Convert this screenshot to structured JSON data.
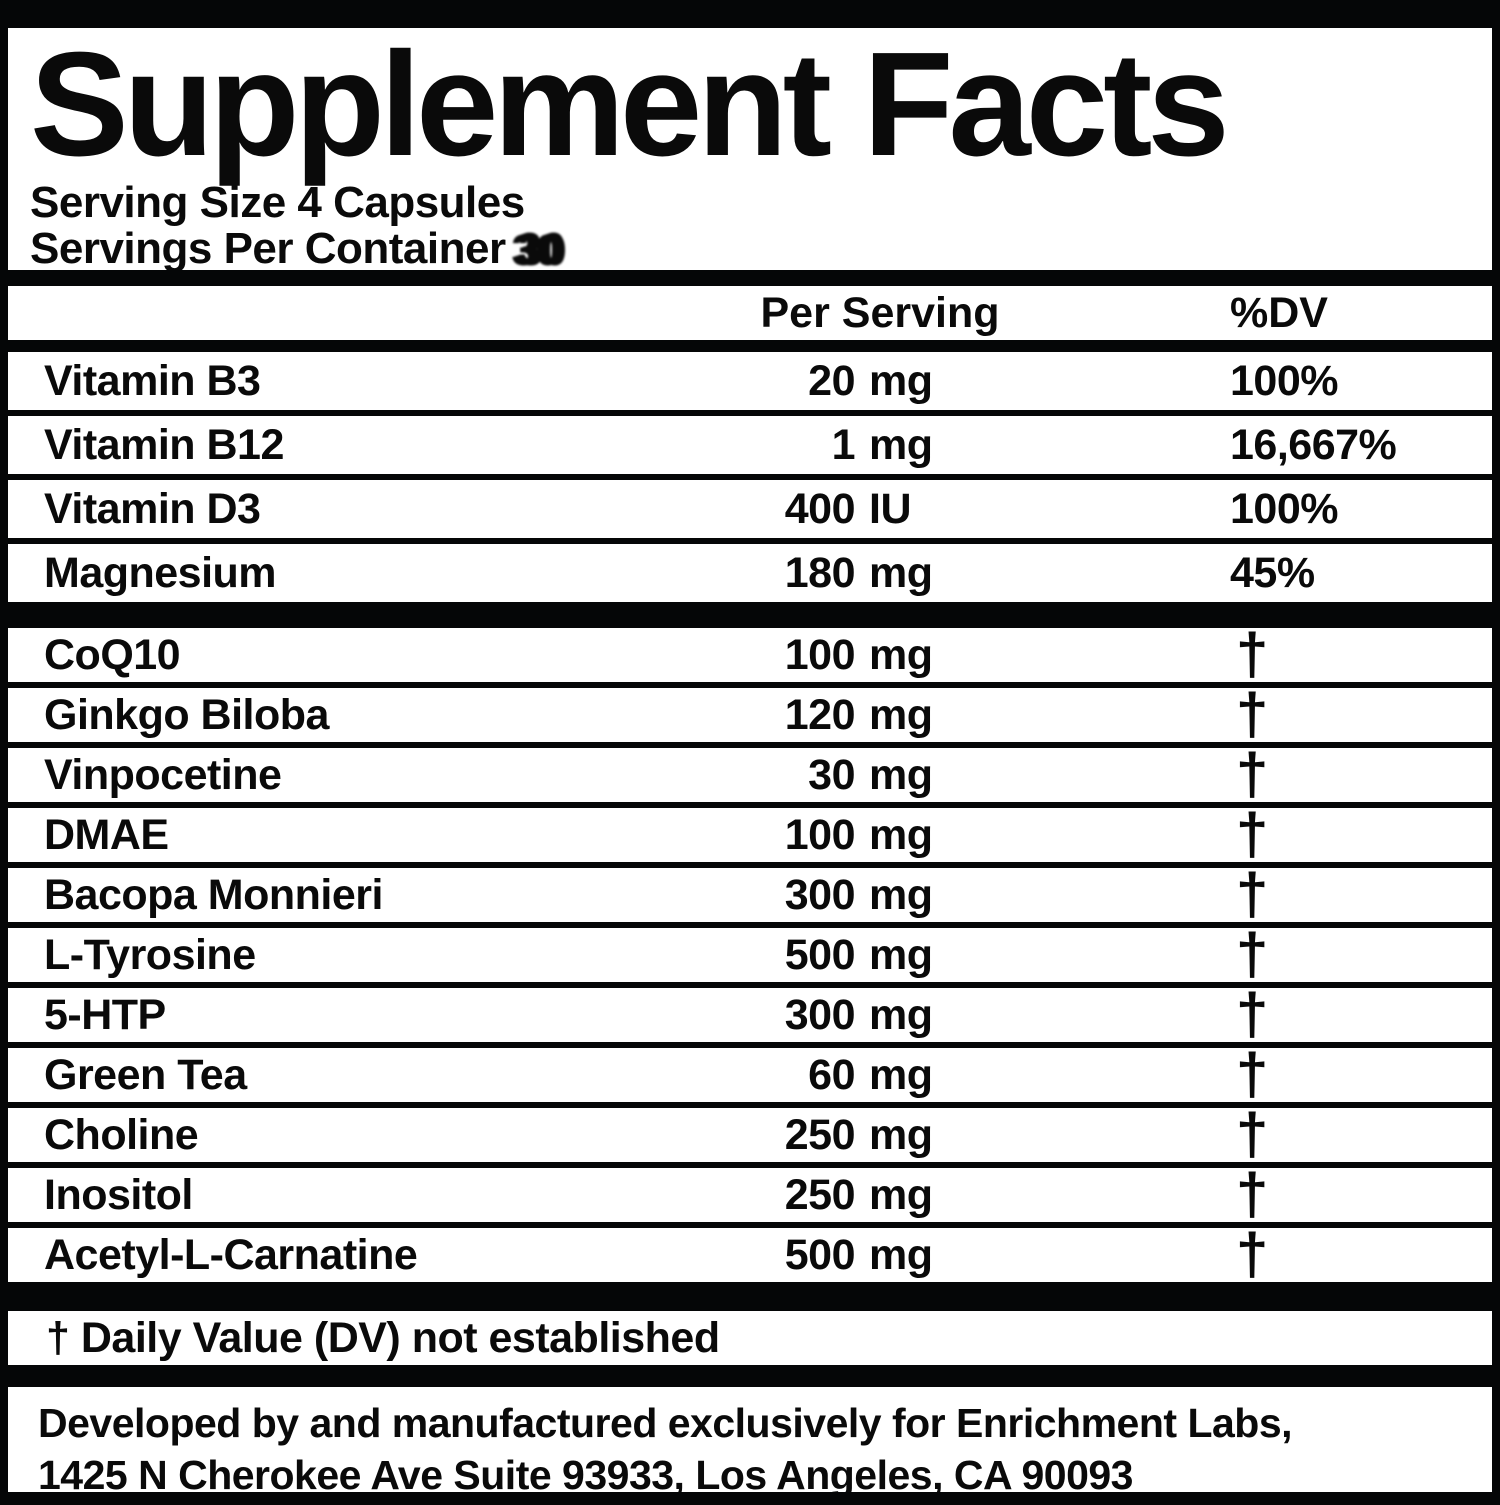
{
  "header": {
    "title": "Supplement Facts",
    "serving_size": "Serving Size 4 Capsules",
    "servings_per_container_label": "Servings Per Container",
    "servings_per_container_value": "30"
  },
  "table": {
    "columns": {
      "per_serving": "Per Serving",
      "dv": "%DV"
    },
    "sections": [
      {
        "rows": [
          {
            "name": "Vitamin B3",
            "amount": "20",
            "unit": "mg",
            "dv": "100%"
          },
          {
            "name": "Vitamin B12",
            "amount": "1",
            "unit": "mg",
            "dv": "16,667%"
          },
          {
            "name": "Vitamin D3",
            "amount": "400",
            "unit": "IU",
            "dv": "100%"
          },
          {
            "name": "Magnesium",
            "amount": "180",
            "unit": "mg",
            "dv": "45%"
          }
        ]
      },
      {
        "rows": [
          {
            "name": "CoQ10",
            "amount": "100",
            "unit": "mg",
            "dv": "†"
          },
          {
            "name": "Ginkgo Biloba",
            "amount": "120",
            "unit": "mg",
            "dv": "†"
          },
          {
            "name": "Vinpocetine",
            "amount": "30",
            "unit": "mg",
            "dv": "†"
          },
          {
            "name": "DMAE",
            "amount": "100",
            "unit": "mg",
            "dv": "†"
          },
          {
            "name": "Bacopa Monnieri",
            "amount": "300",
            "unit": "mg",
            "dv": "†"
          },
          {
            "name": "L-Tyrosine",
            "amount": "500",
            "unit": "mg",
            "dv": "†"
          },
          {
            "name": "5-HTP",
            "amount": "300",
            "unit": "mg",
            "dv": "†"
          },
          {
            "name": "Green Tea",
            "amount": "60",
            "unit": "mg",
            "dv": "†"
          },
          {
            "name": "Choline",
            "amount": "250",
            "unit": "mg",
            "dv": "†"
          },
          {
            "name": "Inositol",
            "amount": "250",
            "unit": "mg",
            "dv": "†"
          },
          {
            "name": "Acetyl-L-Carnatine",
            "amount": "500",
            "unit": "mg",
            "dv": "†"
          }
        ]
      }
    ]
  },
  "footnote": "† Daily Value (DV) not established",
  "footer": {
    "line1": "Developed by and manufactured exclusively for Enrichment Labs,",
    "line2": "1425 N Cherokee Ave Suite 93933, Los Angeles, CA 90093"
  },
  "colors": {
    "background": "#050607",
    "panel": "#ffffff",
    "text": "#0a0a0a"
  }
}
